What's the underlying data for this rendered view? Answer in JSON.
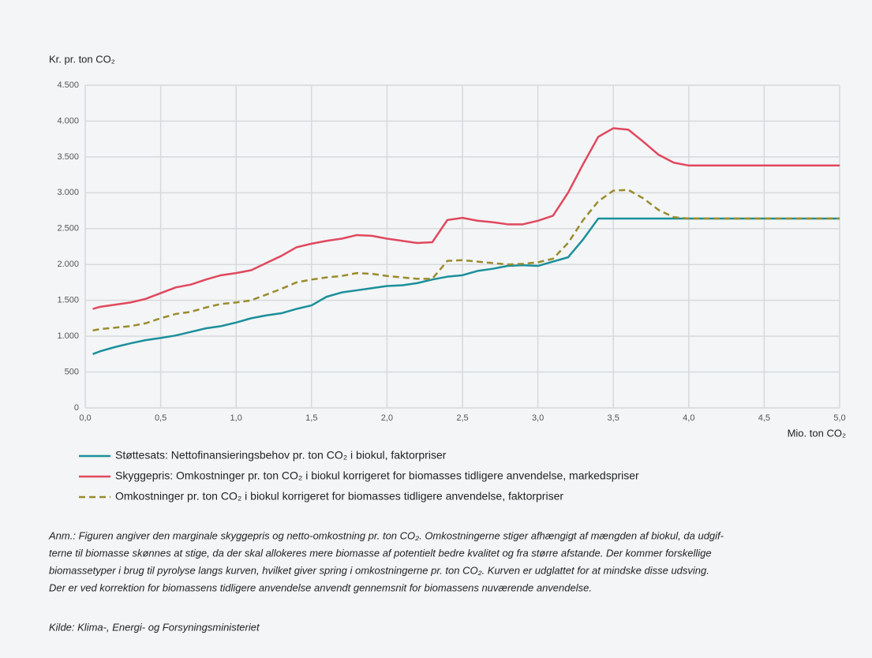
{
  "chart_data": {
    "type": "line",
    "ylabel": "Kr. pr. ton CO₂",
    "xlabel": "Mio. ton CO₂",
    "x": [
      0.05,
      0.1,
      0.2,
      0.3,
      0.4,
      0.5,
      0.6,
      0.7,
      0.8,
      0.9,
      1.0,
      1.1,
      1.2,
      1.3,
      1.4,
      1.5,
      1.6,
      1.7,
      1.8,
      1.9,
      2.0,
      2.1,
      2.2,
      2.3,
      2.4,
      2.5,
      2.6,
      2.7,
      2.8,
      2.9,
      3.0,
      3.1,
      3.2,
      3.3,
      3.4,
      3.5,
      3.6,
      3.7,
      3.8,
      3.9,
      4.0,
      4.1,
      4.2,
      4.3,
      4.4,
      4.5,
      4.6,
      4.7,
      4.8,
      4.9,
      5.0
    ],
    "series": [
      {
        "name": "Støttesats: Nettofinansieringsbehov pr. ton CO₂ i biokul, faktorpriser",
        "color": "#1b8f9b",
        "line_style": "solid",
        "values": [
          750,
          790,
          850,
          900,
          945,
          975,
          1010,
          1060,
          1110,
          1140,
          1190,
          1250,
          1290,
          1320,
          1380,
          1430,
          1550,
          1610,
          1640,
          1670,
          1700,
          1710,
          1740,
          1790,
          1830,
          1850,
          1910,
          1940,
          1980,
          1990,
          1980,
          2040,
          2100,
          2350,
          2640,
          2640,
          2640,
          2640,
          2640,
          2640,
          2640,
          2640,
          2640,
          2640,
          2640,
          2640,
          2640,
          2640,
          2640,
          2640,
          2640
        ]
      },
      {
        "name": "Skyggepris: Omkostninger pr. ton CO₂ i biokul korrigeret for biomasses tidligere anvendelse, markedspriser",
        "color": "#e0485e",
        "line_style": "solid",
        "values": [
          1380,
          1410,
          1440,
          1470,
          1520,
          1600,
          1680,
          1720,
          1790,
          1850,
          1880,
          1920,
          2020,
          2120,
          2240,
          2290,
          2330,
          2360,
          2410,
          2400,
          2360,
          2330,
          2300,
          2310,
          2620,
          2650,
          2610,
          2590,
          2560,
          2560,
          2610,
          2680,
          3000,
          3400,
          3780,
          3900,
          3880,
          3710,
          3530,
          3420,
          3380,
          3380,
          3380,
          3380,
          3380,
          3380,
          3380,
          3380,
          3380,
          3380,
          3380
        ]
      },
      {
        "name": "Omkostninger pr. ton CO₂ i biokul korrigeret for biomasses tidligere anvendelse, faktorpriser",
        "color": "#9a8b2e",
        "line_style": "dashed",
        "values": [
          1080,
          1100,
          1120,
          1140,
          1180,
          1250,
          1310,
          1340,
          1400,
          1450,
          1470,
          1500,
          1580,
          1660,
          1750,
          1790,
          1820,
          1840,
          1880,
          1870,
          1840,
          1820,
          1800,
          1800,
          2050,
          2060,
          2040,
          2020,
          2000,
          2010,
          2030,
          2080,
          2300,
          2620,
          2880,
          3030,
          3040,
          2920,
          2760,
          2660,
          2640,
          2640,
          2640,
          2640,
          2640,
          2640,
          2640,
          2640,
          2640,
          2640,
          2640
        ]
      }
    ],
    "xlim": [
      0,
      5
    ],
    "xticks": [
      {
        "value": 0,
        "label": "0,0"
      },
      {
        "value": 0.5,
        "label": "0,5"
      },
      {
        "value": 1,
        "label": "1,0"
      },
      {
        "value": 1.5,
        "label": "1,5"
      },
      {
        "value": 2,
        "label": "2,0"
      },
      {
        "value": 2.5,
        "label": "2,5"
      },
      {
        "value": 3,
        "label": "3,0"
      },
      {
        "value": 3.5,
        "label": "3,5"
      },
      {
        "value": 4,
        "label": "4,0"
      },
      {
        "value": 4.5,
        "label": "4,5"
      },
      {
        "value": 5,
        "label": "5,0"
      }
    ],
    "ylim": [
      0,
      4500
    ],
    "yticks": [
      0,
      500,
      {
        "value": 1000,
        "label": "1.000"
      },
      {
        "value": 1500,
        "label": "1.500"
      },
      {
        "value": 2000,
        "label": "2.000"
      },
      {
        "value": 2500,
        "label": "2.500"
      },
      {
        "value": 3000,
        "label": "3.000"
      },
      {
        "value": 3500,
        "label": "3.500"
      },
      {
        "value": 4000,
        "label": "4.000"
      },
      {
        "value": 4500,
        "label": "4.500"
      }
    ],
    "grid": true,
    "footnote": [
      "Anm.: Figuren angiver den marginale skyggepris og netto-omkostning pr. ton CO₂. Omkostningerne stiger afhængigt af mængden af biokul, da udgif-",
      "terne til biomasse skønnes at stige, da der skal allokeres mere biomasse af potentielt bedre kvalitet og fra større afstande. Der kommer forskellige",
      "biomassetyper i brug til pyrolyse langs kurven, hvilket giver spring i omkostningerne pr. ton CO₂. Kurven er udglattet for at mindske disse udsving.",
      "Der er ved korrektion for biomassens tidligere anvendelse anvendt gennemsnit for biomassens nuværende anvendelse."
    ],
    "source": "Kilde: Klima-, Energi- og Forsyningsministeriet"
  }
}
